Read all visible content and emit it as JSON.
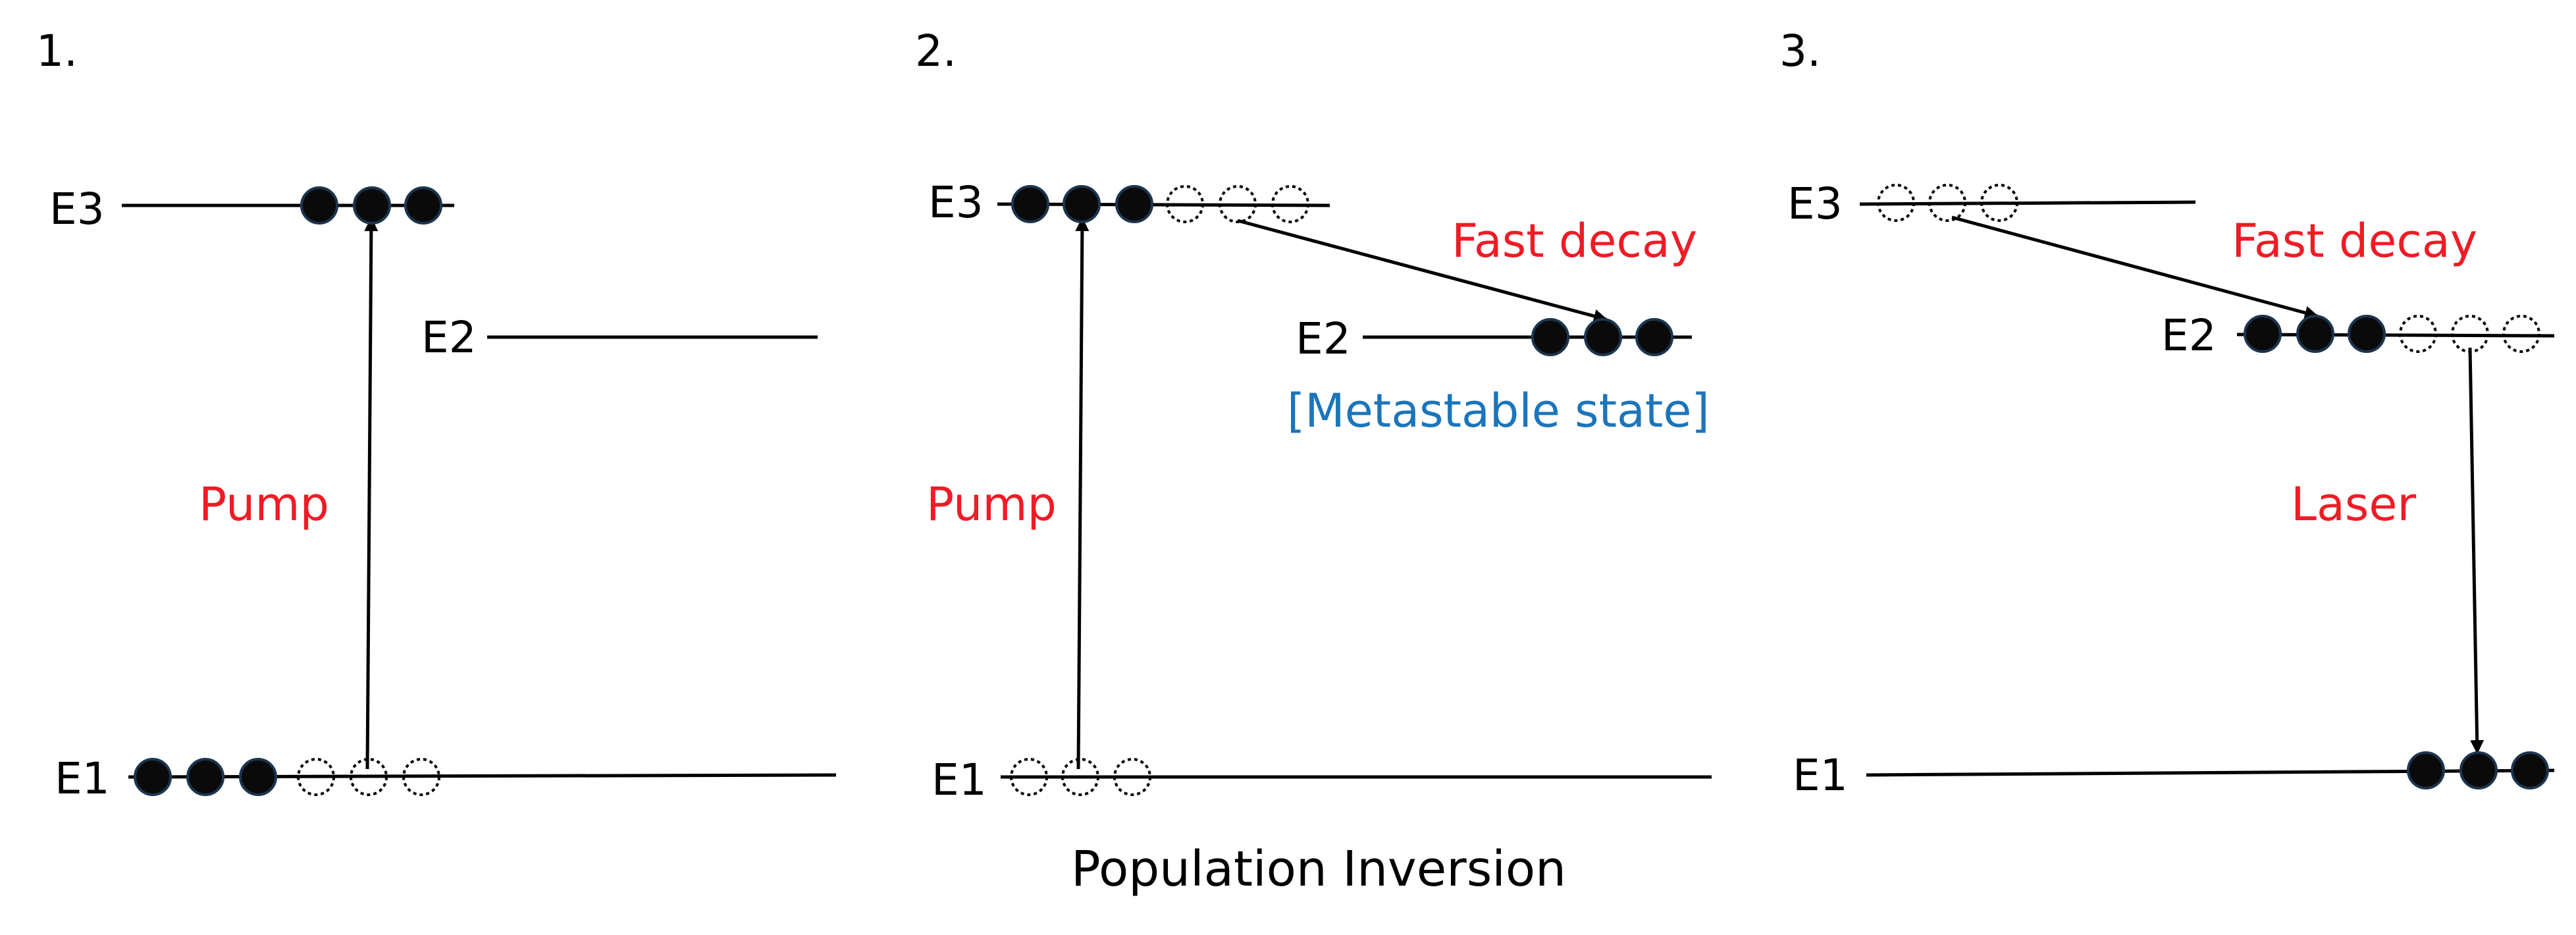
{
  "colors": {
    "line": "#000000",
    "particle_fill": "#0a0a0a",
    "particle_edge": "#1c3550",
    "red_label": "#ee1c25",
    "blue_label": "#1b75bb"
  },
  "caption": "Population Inversion",
  "panels": [
    {
      "number": "1.",
      "levels": {
        "e3": "E3",
        "e2": "E2",
        "e1": "E1"
      },
      "pump_label": "Pump"
    },
    {
      "number": "2.",
      "levels": {
        "e3": "E3",
        "e2": "E2",
        "e1": "E1"
      },
      "pump_label": "Pump",
      "decay_label": "Fast decay",
      "metastable_label": "[Metastable state]"
    },
    {
      "number": "3.",
      "levels": {
        "e3": "E3",
        "e2": "E2",
        "e1": "E1"
      },
      "decay_label": "Fast decay",
      "laser_label": "Laser"
    }
  ]
}
